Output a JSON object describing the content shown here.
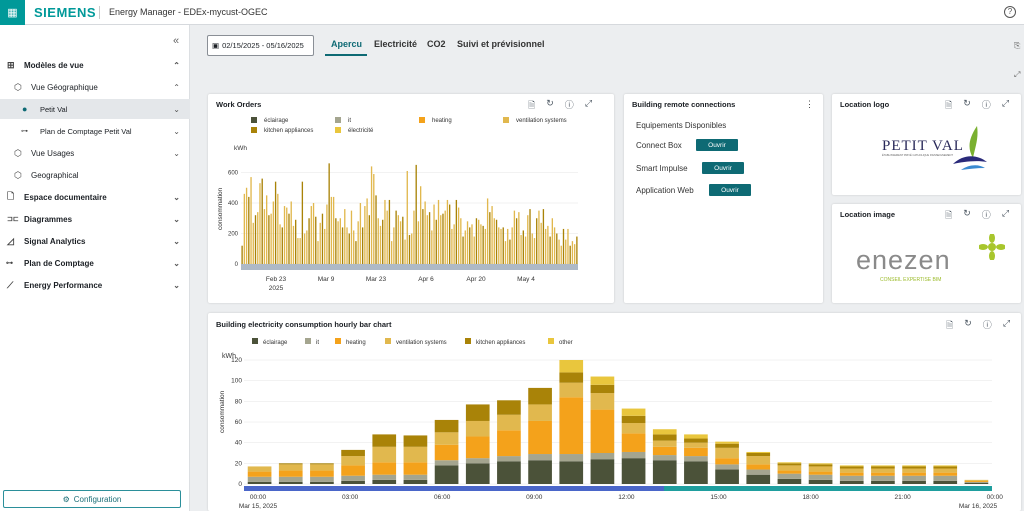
{
  "topbar": {
    "brand": "SIEMENS",
    "app_title": "Energy Manager - EDEx-mycust-OGEC",
    "help_label": "?"
  },
  "sidebar": {
    "items": [
      {
        "label": "Modèles de vue",
        "icon": "layout-icon",
        "chevron": "⌃"
      },
      {
        "label": "Vue Géographique",
        "icon": "cube-icon",
        "chevron": "⌃"
      },
      {
        "label": "Petit Val",
        "icon": "pin-icon",
        "chevron": "⌄"
      },
      {
        "label": "Plan de Comptage Petit Val",
        "icon": "meter-tree-icon",
        "chevron": "⌄"
      },
      {
        "label": "Vue Usages",
        "icon": "cube-icon",
        "chevron": "⌄"
      },
      {
        "label": "Geographical",
        "icon": "cube-icon",
        "chevron": ""
      },
      {
        "label": "Espace documentaire",
        "icon": "document-icon",
        "chevron": "⌄"
      },
      {
        "label": "Diagrammes",
        "icon": "diagram-icon",
        "chevron": "⌄"
      },
      {
        "label": "Signal Analytics",
        "icon": "signal-icon",
        "chevron": "⌄"
      },
      {
        "label": "Plan de Comptage",
        "icon": "meter-tree-icon",
        "chevron": "⌄"
      },
      {
        "label": "Energy Performance",
        "icon": "trend-icon",
        "chevron": "⌄"
      }
    ],
    "config_label": "Configuration"
  },
  "toolbar": {
    "date_range": "02/15/2025 - 05/16/2025",
    "tabs": [
      "Apercu",
      "Electricité",
      "CO2",
      "Suivi et prévisionnel"
    ]
  },
  "work_orders": {
    "title": "Work Orders"
  },
  "remote": {
    "title": "Building remote connections",
    "heading": "Equipements Disponibles",
    "rows": [
      {
        "label": "Connect Box",
        "button": "Ouvrir"
      },
      {
        "label": "Smart Impulse",
        "button": "Ouvrir"
      },
      {
        "label": "Application Web",
        "button": "Ouvrir"
      }
    ]
  },
  "logo_panel": {
    "title": "Location logo",
    "logo_text": "PETIT VAL",
    "logo_subtitle": "ÉTABLISSEMENT PRIVÉ CATHOLIQUE D'ENSEIGNEMENT"
  },
  "image_panel": {
    "title": "Location image",
    "logo_text": "enezen",
    "logo_subtitle": "CONSEIL EXPERTISE BIM"
  },
  "hourly": {
    "title": "Building electricity consumption hourly bar chart"
  },
  "colors": {
    "eclairage": "#4b5239",
    "it": "#a4a58f",
    "heating": "#f4a21b",
    "ventilation": "#e1b84e",
    "kitchen": "#a98308",
    "electricite": "#e9c63d",
    "accent": "#0e6a74"
  },
  "chart_data": [
    {
      "type": "bar",
      "title": "",
      "ylabel": "consommation",
      "unit": "kWh",
      "ylim": [
        0,
        800
      ],
      "yticks": [
        0,
        200,
        400,
        600
      ],
      "xticks": [
        "Feb 23",
        "Mar 9",
        "Mar 23",
        "Apr 6",
        "Apr 20",
        "May 4"
      ],
      "xticks_sub": [
        "2025",
        "",
        "",
        "",
        "",
        ""
      ],
      "legend": [
        "éclairage",
        "it",
        "heating",
        "ventilation systems",
        "kitchen appliances",
        "électricité"
      ],
      "values": [
        120,
        460,
        500,
        440,
        570,
        270,
        320,
        340,
        530,
        560,
        360,
        450,
        320,
        330,
        410,
        540,
        460,
        260,
        240,
        380,
        370,
        330,
        410,
        250,
        290,
        170,
        170,
        540,
        200,
        220,
        300,
        380,
        400,
        310,
        150,
        270,
        330,
        230,
        390,
        660,
        440,
        440,
        300,
        280,
        300,
        240,
        360,
        240,
        200,
        350,
        220,
        150,
        280,
        400,
        240,
        380,
        430,
        320,
        640,
        590,
        450,
        300,
        250,
        290,
        420,
        350,
        420,
        150,
        240,
        350,
        320,
        280,
        310,
        160,
        610,
        190,
        200,
        350,
        650,
        280,
        510,
        360,
        410,
        320,
        340,
        220,
        390,
        290,
        420,
        320,
        330,
        350,
        420,
        390,
        230,
        260,
        420,
        370,
        300,
        180,
        220,
        280,
        240,
        260,
        180,
        300,
        290,
        260,
        250,
        230,
        430,
        340,
        380,
        300,
        290,
        240,
        230,
        240,
        150,
        230,
        160,
        240,
        350,
        300,
        340,
        190,
        220,
        180,
        320,
        360,
        200,
        170,
        300,
        350,
        270,
        360,
        230,
        250,
        180,
        300,
        240,
        200,
        160,
        120,
        230,
        160,
        230,
        120,
        150,
        130,
        180
      ]
    },
    {
      "type": "bar",
      "title": "",
      "ylabel": "consommation",
      "unit": "kWh",
      "ylim": [
        0,
        120
      ],
      "yticks": [
        0,
        20,
        40,
        60,
        80,
        100,
        120
      ],
      "categories": [
        "00:00",
        "01:00",
        "02:00",
        "03:00",
        "04:00",
        "05:00",
        "06:00",
        "07:00",
        "08:00",
        "09:00",
        "10:00",
        "11:00",
        "12:00",
        "13:00",
        "14:00",
        "15:00",
        "16:00",
        "17:00",
        "18:00",
        "19:00",
        "20:00",
        "21:00",
        "22:00",
        "23:00"
      ],
      "xticks": [
        "00:00",
        "03:00",
        "06:00",
        "09:00",
        "12:00",
        "15:00",
        "18:00",
        "21:00",
        "00:00"
      ],
      "date_start": "Mar 15, 2025",
      "date_end": "Mar 16, 2025",
      "series": [
        {
          "name": "éclairage",
          "values": [
            2,
            2,
            2,
            3,
            4,
            4,
            18,
            20,
            22,
            23,
            22,
            24,
            25,
            23,
            22,
            14,
            9,
            5,
            4,
            3,
            3,
            3,
            3,
            1
          ]
        },
        {
          "name": "it",
          "values": [
            5,
            5,
            5,
            5,
            5,
            5,
            5,
            5,
            5,
            6,
            7,
            6,
            6,
            5,
            5,
            5,
            5,
            5,
            5,
            5,
            5,
            5,
            5,
            1
          ]
        },
        {
          "name": "heating",
          "values": [
            5,
            6,
            6,
            10,
            12,
            12,
            15,
            21,
            25,
            32,
            55,
            42,
            18,
            8,
            8,
            6,
            5,
            3,
            3,
            3,
            3,
            3,
            3,
            1
          ]
        },
        {
          "name": "ventilation systems",
          "values": [
            5,
            6,
            6,
            9,
            15,
            15,
            12,
            15,
            15,
            16,
            14,
            16,
            10,
            6,
            5,
            10,
            8,
            5,
            5,
            4,
            4,
            4,
            4,
            1
          ]
        },
        {
          "name": "kitchen appliances",
          "values": [
            0,
            1,
            1,
            6,
            12,
            11,
            12,
            16,
            14,
            16,
            10,
            8,
            7,
            6,
            4,
            4,
            3,
            2,
            2,
            2,
            2,
            2,
            2,
            0
          ]
        },
        {
          "name": "other",
          "values": [
            0,
            0,
            0,
            0,
            0,
            0,
            0,
            0,
            0,
            0,
            12,
            8,
            7,
            5,
            4,
            2,
            1,
            1,
            1,
            1,
            1,
            1,
            1,
            0
          ]
        }
      ]
    }
  ]
}
